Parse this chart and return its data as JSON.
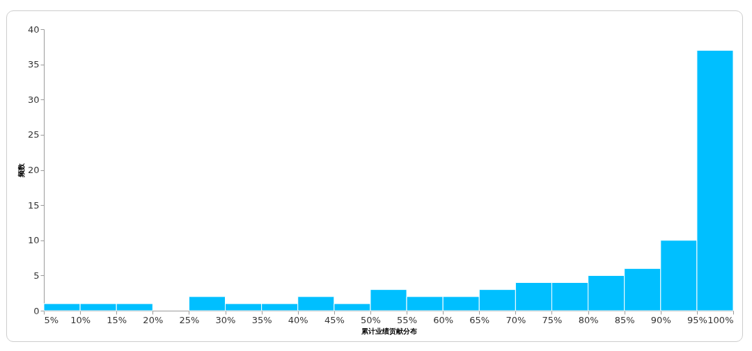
{
  "chart_data": {
    "type": "histogram",
    "xlabel": "累计业绩贡献分布",
    "ylabel": "频数",
    "color": "#00bfff",
    "bins": [
      5,
      10,
      15,
      20,
      25,
      30,
      35,
      40,
      45,
      50,
      55,
      60,
      65,
      70,
      75,
      80,
      85,
      90,
      95,
      100
    ],
    "values": [
      1,
      1,
      1,
      0,
      2,
      1,
      1,
      2,
      1,
      3,
      2,
      2,
      3,
      4,
      4,
      5,
      6,
      10,
      37
    ],
    "xlim": [
      5,
      100
    ],
    "xticks": [
      {
        "value": 5,
        "label": "5%"
      },
      {
        "value": 10,
        "label": "10%"
      },
      {
        "value": 15,
        "label": "15%"
      },
      {
        "value": 20,
        "label": "20%"
      },
      {
        "value": 25,
        "label": "25%"
      },
      {
        "value": 30,
        "label": "30%"
      },
      {
        "value": 35,
        "label": "35%"
      },
      {
        "value": 40,
        "label": "40%"
      },
      {
        "value": 45,
        "label": "45%"
      },
      {
        "value": 50,
        "label": "50%"
      },
      {
        "value": 55,
        "label": "55%"
      },
      {
        "value": 60,
        "label": "60%"
      },
      {
        "value": 65,
        "label": "65%"
      },
      {
        "value": 70,
        "label": "70%"
      },
      {
        "value": 75,
        "label": "75%"
      },
      {
        "value": 80,
        "label": "80%"
      },
      {
        "value": 85,
        "label": "85%"
      },
      {
        "value": 90,
        "label": "90%"
      },
      {
        "value": 95,
        "label": "95%"
      },
      {
        "value": 100,
        "label": "100%"
      }
    ],
    "ylim": [
      0,
      40
    ],
    "yticks": [
      0,
      5,
      10,
      15,
      20,
      25,
      30,
      35,
      40
    ],
    "grid": false
  }
}
